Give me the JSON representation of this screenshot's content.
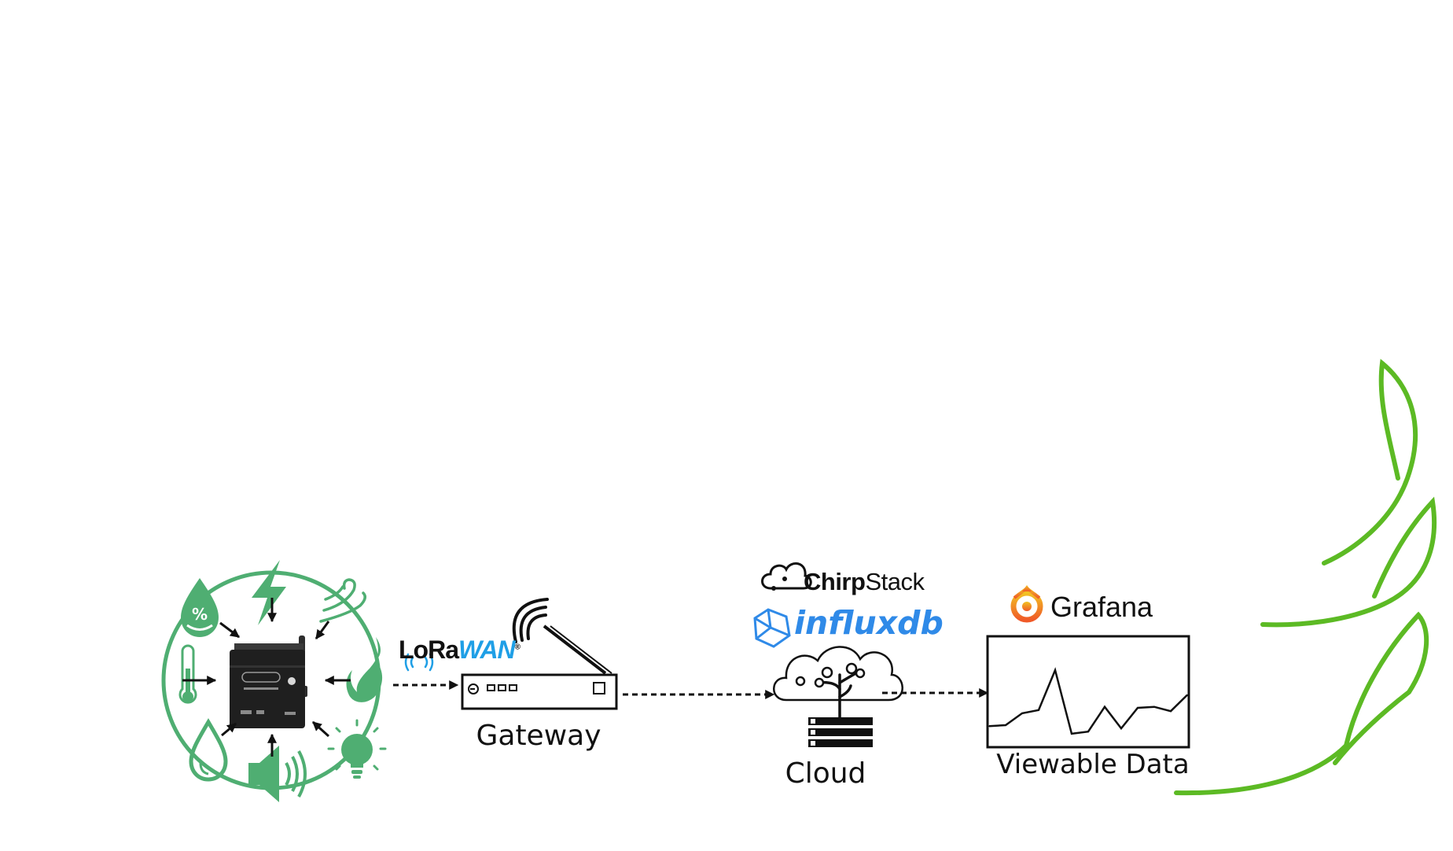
{
  "labels": {
    "gateway": "Gateway",
    "cloud": "Cloud",
    "viewable_data": "Viewable Data"
  },
  "brands": {
    "lorawan_part1": "LoRa",
    "lorawan_part2": "WAN",
    "lorawan_mark": "®",
    "chirpstack_part1": "Chirp",
    "chirpstack_part2": "Stack",
    "influxdb": "influxdb",
    "grafana": "Grafana"
  },
  "sensor_icons": [
    "humidity-icon",
    "lightning-icon",
    "wind-icon",
    "thermometer-icon",
    "flame-icon",
    "water-drop-icon",
    "speaker-icon",
    "light-bulb-icon"
  ],
  "colors": {
    "sensor_green": "#4fae72",
    "leaf_green": "#5cba24",
    "lorawan_blue": "#1f9fe6",
    "influx_blue": "#2f8ae8",
    "grafana_orange": "#f26b21"
  },
  "chart_data": {
    "type": "line",
    "values": [
      0.18,
      0.19,
      0.3,
      0.33,
      0.7,
      0.11,
      0.13,
      0.36,
      0.16,
      0.35,
      0.36,
      0.32,
      0.47
    ]
  }
}
